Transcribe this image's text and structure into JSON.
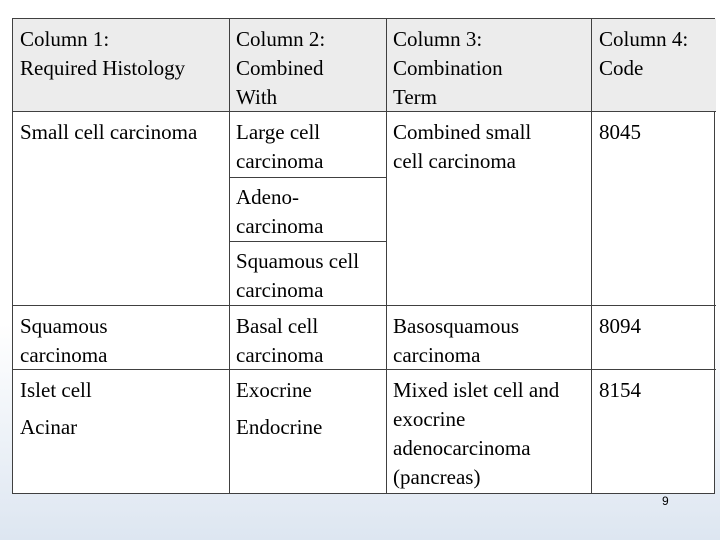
{
  "header": {
    "col1": "Column 1:\nRequired Histology",
    "col2": "Column 2:\nCombined\nWith",
    "col3": "Column 3:\nCombination\nTerm",
    "col4": "Column 4:\nCode"
  },
  "rows": [
    {
      "c1": "Small cell carcinoma",
      "c2": "Large cell\ncarcinoma",
      "c3": "Combined small\ncell carcinoma",
      "c4": "8045"
    },
    {
      "c2": "Adeno-\ncarcinoma"
    },
    {
      "c2": "Squamous cell\ncarcinoma"
    },
    {
      "c1": "Squamous\ncarcinoma",
      "c2": "Basal cell\ncarcinoma",
      "c3": "Basosquamous\ncarcinoma",
      "c4": "8094"
    },
    {
      "c1": "Islet cell",
      "c2": "Exocrine",
      "c3": "Mixed islet cell and\nexocrine\nadenocarcinoma\n(pancreas)",
      "c4": "8154"
    },
    {
      "c1": "Acinar",
      "c2": "Endocrine"
    }
  ],
  "page_number": "9"
}
